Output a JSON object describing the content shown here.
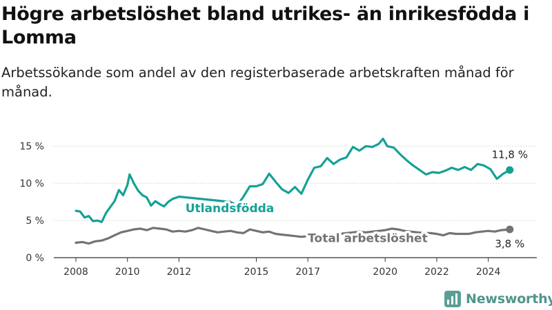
{
  "title": "Högre arbetslöshet bland utrikes- än inrikesfödda i Lomma",
  "subtitle": "Arbetssökande som andel av den registerbaserade arbetskraften månad för månad.",
  "brand": {
    "name": "Newsworthy",
    "icon": "bar-chart-logo-icon",
    "color": "#5a9e94"
  },
  "chart_data": {
    "type": "line",
    "title": "Högre arbetslöshet bland utrikes- än inrikesfödda i Lomma",
    "subtitle": "Arbetssökande som andel av den registerbaserade arbetskraften månad för månad.",
    "xlabel": "",
    "ylabel": "",
    "x_range": [
      "2008-01",
      "2025-01"
    ],
    "ylim": [
      0,
      16.5
    ],
    "y_ticks": [
      0,
      5,
      10,
      15
    ],
    "y_tick_labels": [
      "0 %",
      "5 %",
      "10 %",
      "15 %"
    ],
    "x_ticks": [
      "2008-01",
      "2010-01",
      "2012-01",
      "2015-01",
      "2017-01",
      "2020-01",
      "2022-01",
      "2024-01"
    ],
    "x_tick_labels": [
      "2008",
      "2010",
      "2012",
      "2015",
      "2017",
      "2020",
      "2022",
      "2024"
    ],
    "grid": true,
    "series": [
      {
        "name": "Utlandsfödda",
        "color": "#15a196",
        "end_label": "11,8 %",
        "points": [
          [
            "2008-01",
            6.3
          ],
          [
            "2008-03",
            6.2
          ],
          [
            "2008-05",
            5.4
          ],
          [
            "2008-07",
            5.6
          ],
          [
            "2008-09",
            4.9
          ],
          [
            "2008-11",
            5.0
          ],
          [
            "2009-01",
            4.8
          ],
          [
            "2009-03",
            6.0
          ],
          [
            "2009-05",
            6.8
          ],
          [
            "2009-07",
            7.6
          ],
          [
            "2009-09",
            9.1
          ],
          [
            "2009-11",
            8.4
          ],
          [
            "2010-01",
            9.8
          ],
          [
            "2010-02",
            11.2
          ],
          [
            "2010-04",
            10.0
          ],
          [
            "2010-06",
            9.0
          ],
          [
            "2010-08",
            8.4
          ],
          [
            "2010-10",
            8.1
          ],
          [
            "2010-12",
            7.0
          ],
          [
            "2011-02",
            7.6
          ],
          [
            "2011-04",
            7.2
          ],
          [
            "2011-06",
            6.9
          ],
          [
            "2011-08",
            7.5
          ],
          [
            "2011-10",
            7.9
          ],
          [
            "2012-01",
            8.2
          ],
          [
            "2014-01",
            7.5
          ],
          [
            "2014-04",
            7.0
          ],
          [
            "2014-07",
            8.2
          ],
          [
            "2014-10",
            9.6
          ],
          [
            "2015-01",
            9.6
          ],
          [
            "2015-04",
            9.9
          ],
          [
            "2015-07",
            11.3
          ],
          [
            "2015-10",
            10.2
          ],
          [
            "2016-01",
            9.2
          ],
          [
            "2016-04",
            8.7
          ],
          [
            "2016-07",
            9.5
          ],
          [
            "2016-10",
            8.6
          ],
          [
            "2017-01",
            10.5
          ],
          [
            "2017-04",
            12.1
          ],
          [
            "2017-07",
            12.3
          ],
          [
            "2017-10",
            13.4
          ],
          [
            "2018-01",
            12.6
          ],
          [
            "2018-04",
            13.2
          ],
          [
            "2018-07",
            13.5
          ],
          [
            "2018-10",
            14.9
          ],
          [
            "2019-01",
            14.4
          ],
          [
            "2019-04",
            15.0
          ],
          [
            "2019-07",
            14.9
          ],
          [
            "2019-10",
            15.3
          ],
          [
            "2019-12",
            16.0
          ],
          [
            "2020-02",
            15.0
          ],
          [
            "2020-05",
            14.8
          ],
          [
            "2020-08",
            13.9
          ],
          [
            "2020-11",
            13.1
          ],
          [
            "2021-02",
            12.4
          ],
          [
            "2021-05",
            11.8
          ],
          [
            "2021-08",
            11.2
          ],
          [
            "2021-11",
            11.5
          ],
          [
            "2022-02",
            11.4
          ],
          [
            "2022-05",
            11.7
          ],
          [
            "2022-08",
            12.1
          ],
          [
            "2022-11",
            11.8
          ],
          [
            "2023-02",
            12.2
          ],
          [
            "2023-05",
            11.8
          ],
          [
            "2023-08",
            12.6
          ],
          [
            "2023-11",
            12.4
          ],
          [
            "2024-02",
            11.9
          ],
          [
            "2024-05",
            10.6
          ],
          [
            "2024-08",
            11.3
          ],
          [
            "2024-11",
            11.8
          ]
        ]
      },
      {
        "name": "Total arbetslöshet",
        "color": "#737373",
        "end_label": "3,8 %",
        "points": [
          [
            "2008-01",
            2.0
          ],
          [
            "2008-04",
            2.1
          ],
          [
            "2008-07",
            1.9
          ],
          [
            "2008-10",
            2.2
          ],
          [
            "2009-01",
            2.3
          ],
          [
            "2009-04",
            2.6
          ],
          [
            "2009-07",
            3.0
          ],
          [
            "2009-10",
            3.4
          ],
          [
            "2010-01",
            3.6
          ],
          [
            "2010-04",
            3.8
          ],
          [
            "2010-07",
            3.9
          ],
          [
            "2010-10",
            3.7
          ],
          [
            "2011-01",
            4.0
          ],
          [
            "2011-04",
            3.9
          ],
          [
            "2011-07",
            3.8
          ],
          [
            "2011-10",
            3.5
          ],
          [
            "2012-01",
            3.6
          ],
          [
            "2012-04",
            3.5
          ],
          [
            "2012-07",
            3.7
          ],
          [
            "2012-10",
            4.0
          ],
          [
            "2013-01",
            3.8
          ],
          [
            "2013-04",
            3.6
          ],
          [
            "2013-07",
            3.4
          ],
          [
            "2013-10",
            3.5
          ],
          [
            "2014-01",
            3.6
          ],
          [
            "2014-04",
            3.4
          ],
          [
            "2014-07",
            3.3
          ],
          [
            "2014-10",
            3.8
          ],
          [
            "2015-01",
            3.6
          ],
          [
            "2015-04",
            3.4
          ],
          [
            "2015-07",
            3.5
          ],
          [
            "2015-10",
            3.2
          ],
          [
            "2016-01",
            3.1
          ],
          [
            "2016-04",
            3.0
          ],
          [
            "2016-07",
            2.9
          ],
          [
            "2016-10",
            2.8
          ],
          [
            "2017-01",
            2.9
          ],
          [
            "2017-04",
            3.1
          ],
          [
            "2017-07",
            3.0
          ],
          [
            "2017-10",
            3.0
          ],
          [
            "2018-01",
            3.1
          ],
          [
            "2018-04",
            3.2
          ],
          [
            "2018-07",
            3.3
          ],
          [
            "2018-10",
            3.4
          ],
          [
            "2019-01",
            3.5
          ],
          [
            "2019-04",
            3.4
          ],
          [
            "2019-07",
            3.5
          ],
          [
            "2019-10",
            3.6
          ],
          [
            "2020-01",
            3.7
          ],
          [
            "2020-04",
            3.9
          ],
          [
            "2020-07",
            3.8
          ],
          [
            "2020-10",
            3.6
          ],
          [
            "2021-01",
            3.5
          ],
          [
            "2021-04",
            3.4
          ],
          [
            "2021-07",
            3.3
          ],
          [
            "2021-10",
            3.3
          ],
          [
            "2022-01",
            3.2
          ],
          [
            "2022-04",
            3.0
          ],
          [
            "2022-07",
            3.3
          ],
          [
            "2022-10",
            3.2
          ],
          [
            "2023-01",
            3.2
          ],
          [
            "2023-04",
            3.2
          ],
          [
            "2023-07",
            3.4
          ],
          [
            "2023-10",
            3.5
          ],
          [
            "2024-01",
            3.6
          ],
          [
            "2024-04",
            3.5
          ],
          [
            "2024-07",
            3.7
          ],
          [
            "2024-11",
            3.8
          ]
        ]
      }
    ],
    "annotations": [
      {
        "text": "Utlandsfödda",
        "series": "Utlandsfödda",
        "at": "2012-04"
      },
      {
        "text": "Total arbetslöshet",
        "series": "Total arbetslöshet",
        "at": "2017-01"
      }
    ]
  }
}
